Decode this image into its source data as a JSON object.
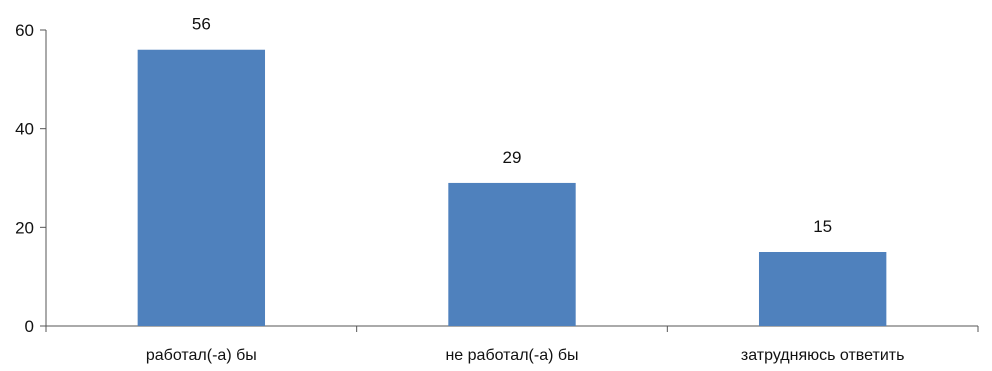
{
  "chart_data": {
    "type": "bar",
    "categories": [
      "работал(-а) бы",
      "не работал(-а) бы",
      "затрудняюсь ответить"
    ],
    "values": [
      56,
      29,
      15
    ],
    "data_labels": [
      "56",
      "29",
      "15"
    ],
    "ylim": [
      0,
      60
    ],
    "yticks": [
      0,
      20,
      40,
      60
    ],
    "ytick_labels": [
      "0",
      "20",
      "40",
      "60"
    ],
    "title": "",
    "xlabel": "",
    "ylabel": "",
    "grid": false,
    "legend": "none",
    "bar_color": "#4f81bd",
    "axis_color": "#555555"
  }
}
